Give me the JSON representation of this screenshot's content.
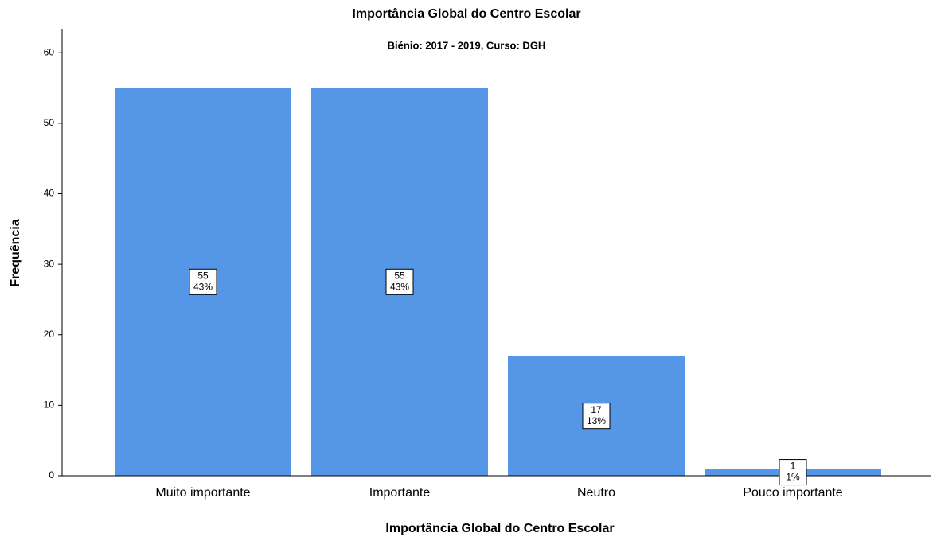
{
  "chart_data": {
    "type": "bar",
    "title": "Importância Global do Centro Escolar",
    "subtitle": "Biénio: 2017 - 2019, Curso: DGH",
    "x_label": "Importância Global do Centro Escolar",
    "y_label": "Frequência",
    "categories": [
      "Muito importante",
      "Importante",
      "Neutro",
      "Pouco importante"
    ],
    "values": [
      55,
      55,
      17,
      1
    ],
    "percents": [
      43,
      43,
      13,
      1
    ],
    "percent_labels": [
      "43%",
      "43%",
      "13%",
      "1%"
    ],
    "color": "#5596e6",
    "ylim": [
      0,
      63.3
    ],
    "yticks": [
      0,
      10,
      20,
      30,
      40,
      50,
      60
    ]
  }
}
